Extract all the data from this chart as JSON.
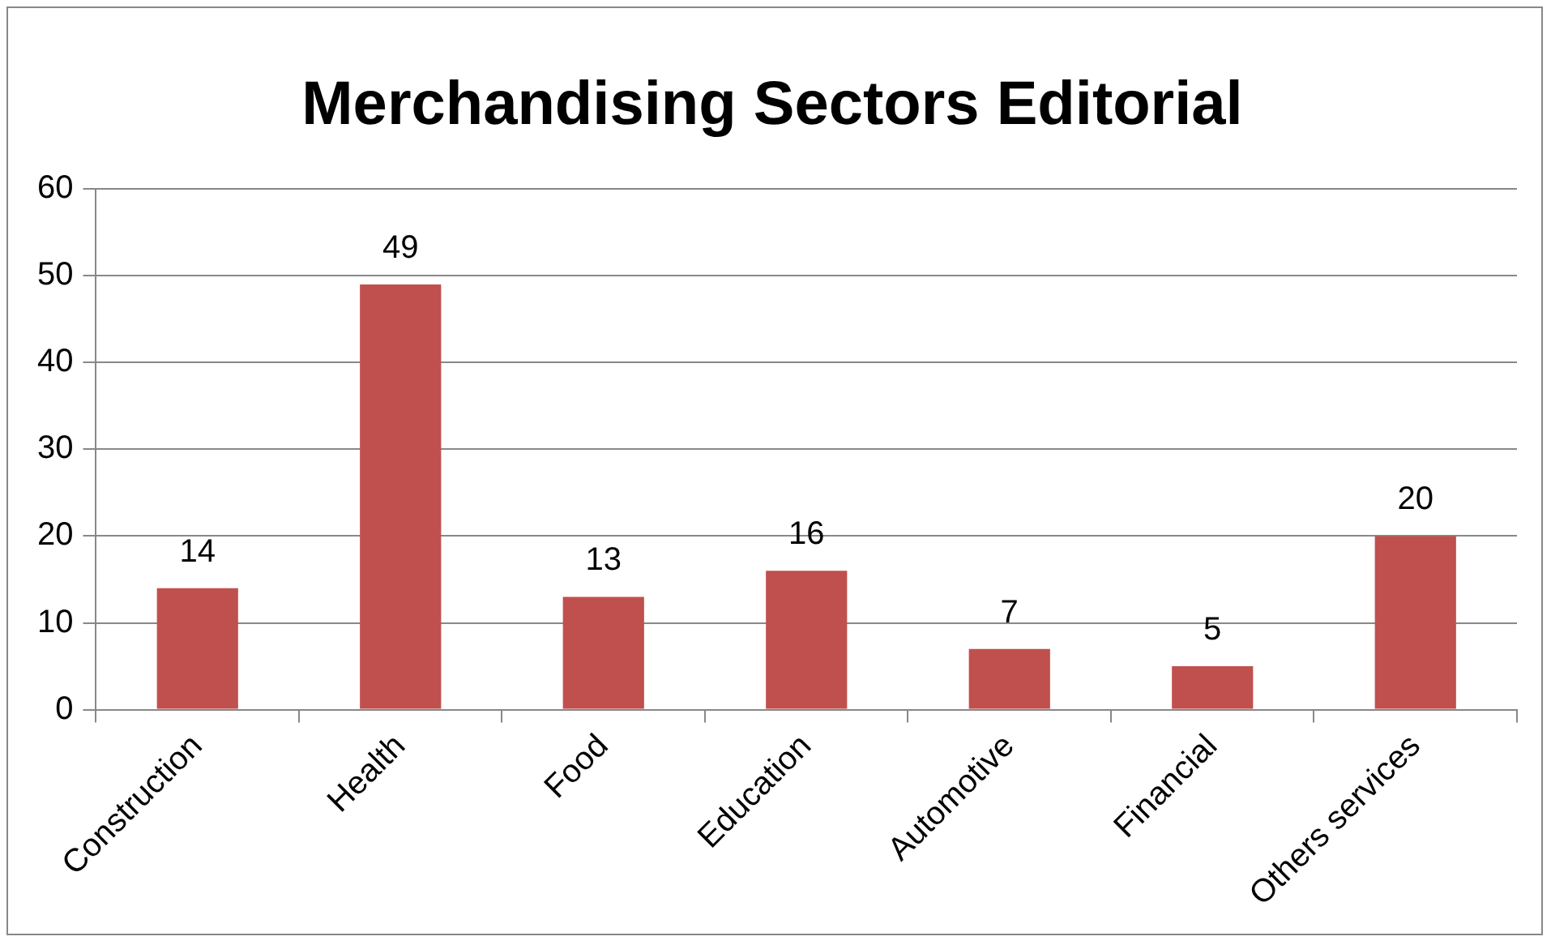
{
  "chart_data": {
    "type": "bar",
    "title": "Merchandising Sectors Editorial",
    "categories": [
      "Construction",
      "Health",
      "Food",
      "Education",
      "Automotive",
      "Financial",
      "Others services"
    ],
    "values": [
      14,
      49,
      13,
      16,
      7,
      5,
      20
    ],
    "color": "#c0504d",
    "ylim": [
      0,
      60
    ],
    "yticks": [
      0,
      10,
      20,
      30,
      40,
      50,
      60
    ],
    "grid": "y",
    "data_labels": true
  }
}
